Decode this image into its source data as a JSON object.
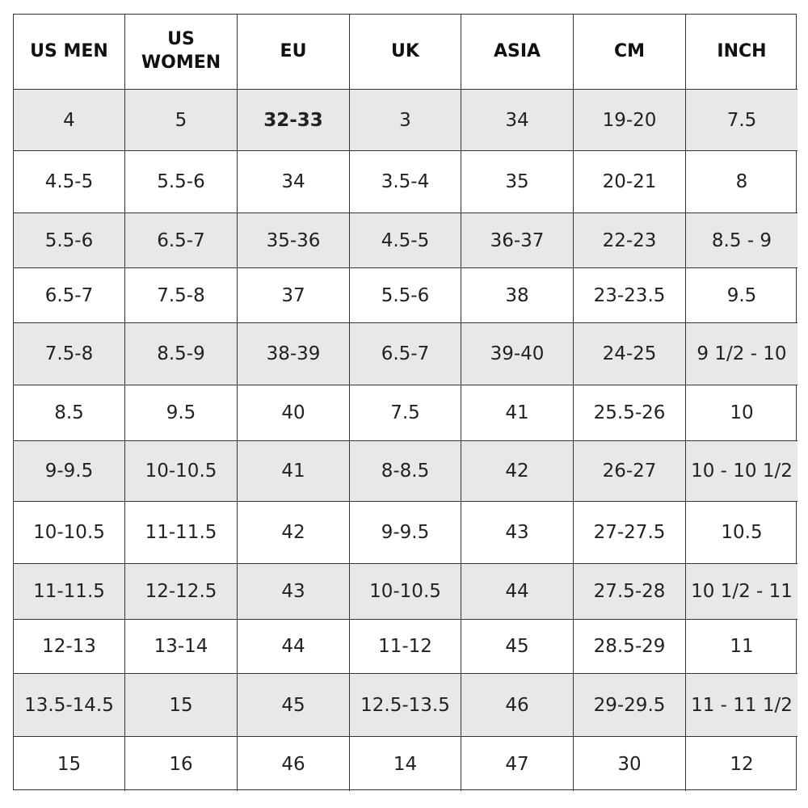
{
  "table": {
    "header": [
      "US MEN",
      "US WOMEN",
      "EU",
      "UK",
      "ASIA",
      "CM",
      "INCH"
    ],
    "rows": [
      [
        "4",
        "5",
        "32-33",
        "3",
        "34",
        "19-20",
        "7.5"
      ],
      [
        "4.5-5",
        "5.5-6",
        "34",
        "3.5-4",
        "35",
        "20-21",
        "8"
      ],
      [
        "5.5-6",
        "6.5-7",
        "35-36",
        "4.5-5",
        "36-37",
        "22-23",
        "8.5 - 9"
      ],
      [
        "6.5-7",
        "7.5-8",
        "37",
        "5.5-6",
        "38",
        "23-23.5",
        "9.5"
      ],
      [
        "7.5-8",
        "8.5-9",
        "38-39",
        "6.5-7",
        "39-40",
        "24-25",
        "9 1/2 - 10"
      ],
      [
        "8.5",
        "9.5",
        "40",
        "7.5",
        "41",
        "25.5-26",
        "10"
      ],
      [
        "9-9.5",
        "10-10.5",
        "41",
        "8-8.5",
        "42",
        "26-27",
        "10 - 10 1/2"
      ],
      [
        "10-10.5",
        "11-11.5",
        "42",
        "9-9.5",
        "43",
        "27-27.5",
        "10.5"
      ],
      [
        "11-11.5",
        "12-12.5",
        "43",
        "10-10.5",
        "44",
        "27.5-28",
        "10 1/2 - 11"
      ],
      [
        "12-13",
        "13-14",
        "44",
        "11-12",
        "45",
        "28.5-29",
        "11"
      ],
      [
        "13.5-14.5",
        "15",
        "45",
        "12.5-13.5",
        "46",
        "29-29.5",
        "11 - 11 1/2"
      ],
      [
        "15",
        "16",
        "46",
        "14",
        "47",
        "30",
        "12"
      ]
    ]
  }
}
